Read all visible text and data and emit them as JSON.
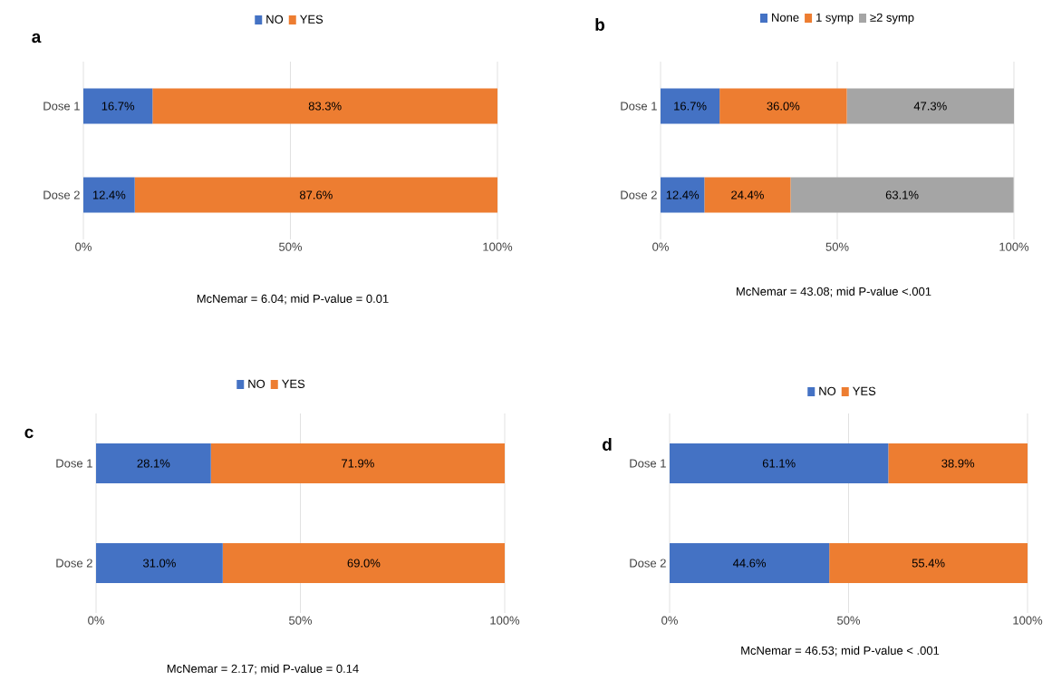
{
  "chart_data": [
    {
      "type": "bar",
      "title": "a",
      "orientation": "horizontal",
      "stacked": true,
      "categories": [
        "Dose 1",
        "Dose 2"
      ],
      "xlim": [
        0,
        100
      ],
      "xticks": [
        {
          "value": 0,
          "label": "0%"
        },
        {
          "value": 50,
          "label": "50%"
        },
        {
          "value": 100,
          "label": "100%"
        }
      ],
      "grid": "x",
      "legend": "top",
      "series": [
        {
          "name": "NO",
          "color": "#4472c4",
          "values": [
            16.7,
            12.4
          ],
          "value_labels": [
            "16.7%",
            "12.4%"
          ]
        },
        {
          "name": "YES",
          "color": "#ed7d31",
          "values": [
            83.3,
            87.6
          ],
          "value_labels": [
            "83.3%",
            "87.6%"
          ]
        }
      ],
      "annotations": [
        "McNemar = 6.04; mid P-value = 0.01"
      ]
    },
    {
      "type": "bar",
      "title": "b",
      "orientation": "horizontal",
      "stacked": true,
      "categories": [
        "Dose 1",
        "Dose 2"
      ],
      "xlim": [
        0,
        100
      ],
      "xticks": [
        {
          "value": 0,
          "label": "0%"
        },
        {
          "value": 50,
          "label": "50%"
        },
        {
          "value": 100,
          "label": "100%"
        }
      ],
      "grid": "x",
      "legend": "top",
      "series": [
        {
          "name": "None",
          "color": "#4472c4",
          "values": [
            16.7,
            12.4
          ],
          "value_labels": [
            "16.7%",
            "12.4%"
          ]
        },
        {
          "name": "1 symp",
          "color": "#ed7d31",
          "values": [
            36.0,
            24.4
          ],
          "value_labels": [
            "36.0%",
            "24.4%"
          ]
        },
        {
          "name": "≥2 symp",
          "color": "#a5a5a5",
          "values": [
            47.3,
            63.1
          ],
          "value_labels": [
            "47.3%",
            "63.1%"
          ]
        }
      ],
      "annotations": [
        "McNemar = 43.08; mid P-value <.001"
      ]
    },
    {
      "type": "bar",
      "title": "c",
      "orientation": "horizontal",
      "stacked": true,
      "categories": [
        "Dose 1",
        "Dose 2"
      ],
      "xlim": [
        0,
        100
      ],
      "xticks": [
        {
          "value": 0,
          "label": "0%"
        },
        {
          "value": 50,
          "label": "50%"
        },
        {
          "value": 100,
          "label": "100%"
        }
      ],
      "grid": "x",
      "legend": "top",
      "series": [
        {
          "name": "NO",
          "color": "#4472c4",
          "values": [
            28.1,
            31.0
          ],
          "value_labels": [
            "28.1%",
            "31.0%"
          ]
        },
        {
          "name": "YES",
          "color": "#ed7d31",
          "values": [
            71.9,
            69.0
          ],
          "value_labels": [
            "71.9%",
            "69.0%"
          ]
        }
      ],
      "annotations": [
        "McNemar = 2.17; mid P-value = 0.14"
      ]
    },
    {
      "type": "bar",
      "title": "d",
      "orientation": "horizontal",
      "stacked": true,
      "categories": [
        "Dose 1",
        "Dose 2"
      ],
      "xlim": [
        0,
        100
      ],
      "xticks": [
        {
          "value": 0,
          "label": "0%"
        },
        {
          "value": 50,
          "label": "50%"
        },
        {
          "value": 100,
          "label": "100%"
        }
      ],
      "grid": "x",
      "legend": "top",
      "series": [
        {
          "name": "NO",
          "color": "#4472c4",
          "values": [
            61.1,
            44.6
          ],
          "value_labels": [
            "61.1%",
            "44.6%"
          ]
        },
        {
          "name": "YES",
          "color": "#ed7d31",
          "values": [
            38.9,
            55.4
          ],
          "value_labels": [
            "38.9%",
            "55.4%"
          ]
        }
      ],
      "annotations": [
        "McNemar = 46.53; mid P-value < .001"
      ]
    }
  ]
}
